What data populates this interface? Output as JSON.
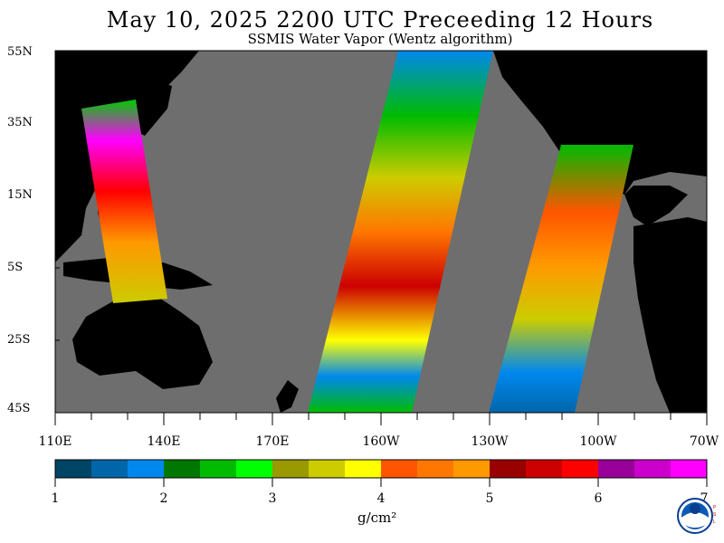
{
  "header": {
    "title": "May 10, 2025  2200 UTC  Preceeding 12 Hours",
    "subtitle": "SSMIS Water Vapor (Wentz algorithm)"
  },
  "map": {
    "lat_labels": [
      "55N",
      "35N",
      "15N",
      "5S",
      "25S",
      "45S"
    ],
    "lon_labels": [
      "110E",
      "140E",
      "170E",
      "160W",
      "130W",
      "100W",
      "70W"
    ],
    "colors": {
      "ocean_no_data": "#6e6e6e",
      "land": "#000000"
    }
  },
  "colorbar": {
    "units": "g/cm²",
    "tick_labels": [
      "1",
      "2",
      "3",
      "4",
      "5",
      "6",
      "7"
    ],
    "colors": [
      "#004466",
      "#0066aa",
      "#0088ee",
      "#007700",
      "#00bb00",
      "#00ff00",
      "#999900",
      "#cccc00",
      "#ffff00",
      "#ff5500",
      "#ff7700",
      "#ff9900",
      "#990000",
      "#cc0000",
      "#ff0000",
      "#990099",
      "#cc00cc",
      "#ff00ff"
    ]
  },
  "logo": {
    "name": "NOAA",
    "side_text": "PSL"
  }
}
